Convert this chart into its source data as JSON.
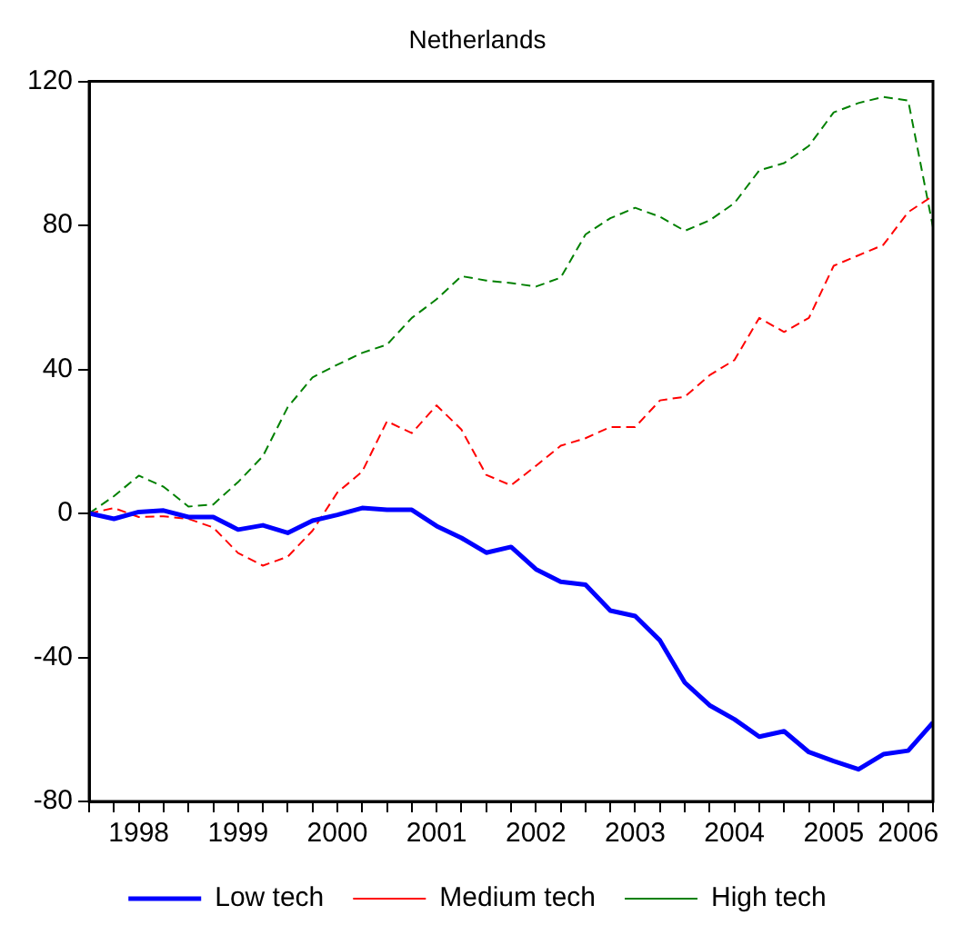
{
  "chart_data": {
    "type": "line",
    "title": "Netherlands",
    "x": [
      1998,
      1998.25,
      1998.5,
      1998.75,
      1999,
      1999.25,
      1999.5,
      1999.75,
      2000,
      2000.25,
      2000.5,
      2000.75,
      2001,
      2001.25,
      2001.5,
      2001.75,
      2002,
      2002.25,
      2002.5,
      2002.75,
      2003,
      2003.25,
      2003.5,
      2003.75,
      2004,
      2004.25,
      2004.5,
      2004.75,
      2005,
      2005.25,
      2005.5,
      2005.75,
      2006,
      2006.25,
      2006.5
    ],
    "xlim": [
      1998,
      2006.5
    ],
    "xticks": [
      {
        "value": 1998,
        "label": null
      },
      {
        "value": 1998.25,
        "label": null
      },
      {
        "value": 1998.5,
        "label": "1998"
      },
      {
        "value": 1998.75,
        "label": null
      },
      {
        "value": 1999,
        "label": null
      },
      {
        "value": 1999.25,
        "label": null
      },
      {
        "value": 1999.5,
        "label": "1999"
      },
      {
        "value": 1999.75,
        "label": null
      },
      {
        "value": 2000,
        "label": null
      },
      {
        "value": 2000.25,
        "label": null
      },
      {
        "value": 2000.5,
        "label": "2000"
      },
      {
        "value": 2000.75,
        "label": null
      },
      {
        "value": 2001,
        "label": null
      },
      {
        "value": 2001.25,
        "label": null
      },
      {
        "value": 2001.5,
        "label": "2001"
      },
      {
        "value": 2001.75,
        "label": null
      },
      {
        "value": 2002,
        "label": null
      },
      {
        "value": 2002.25,
        "label": null
      },
      {
        "value": 2002.5,
        "label": "2002"
      },
      {
        "value": 2002.75,
        "label": null
      },
      {
        "value": 2003,
        "label": null
      },
      {
        "value": 2003.25,
        "label": null
      },
      {
        "value": 2003.5,
        "label": "2003"
      },
      {
        "value": 2003.75,
        "label": null
      },
      {
        "value": 2004,
        "label": null
      },
      {
        "value": 2004.25,
        "label": null
      },
      {
        "value": 2004.5,
        "label": "2004"
      },
      {
        "value": 2004.75,
        "label": null
      },
      {
        "value": 2005,
        "label": null
      },
      {
        "value": 2005.25,
        "label": null
      },
      {
        "value": 2005.5,
        "label": "2005"
      },
      {
        "value": 2005.75,
        "label": null
      },
      {
        "value": 2006,
        "label": null
      },
      {
        "value": 2006.25,
        "label": "2006"
      },
      {
        "value": 2006.5,
        "label": null
      }
    ],
    "ylim": [
      -80,
      120
    ],
    "yticks": [
      -80,
      -40,
      0,
      40,
      80,
      120
    ],
    "grid": false,
    "legend": "bottom",
    "marker": "none",
    "series": [
      {
        "name": "Low tech",
        "color": "#0000ff",
        "line_style": "solid",
        "values": [
          0,
          -1.5,
          0.4,
          0.8,
          -1,
          -1,
          -4.5,
          -3.3,
          -5.4,
          -2,
          -0.4,
          1.5,
          1,
          1,
          -3.5,
          -6.8,
          -10.9,
          -9.3,
          -15.5,
          -19,
          -19.8,
          -27,
          -28.5,
          -35.3,
          -47,
          -53.3,
          -57.2,
          -62,
          -60.5,
          -66.3,
          -68.8,
          -71.1,
          -66.9,
          -65.9,
          -58.1
        ]
      },
      {
        "name": "Medium tech",
        "color": "#ff0000",
        "line_style": "dashed",
        "values": [
          0,
          1.5,
          -1,
          -0.8,
          -1.5,
          -3.9,
          -11,
          -14.5,
          -12,
          -4.8,
          5.8,
          11.6,
          25.6,
          22.3,
          30,
          23.3,
          10.7,
          7.8,
          13.2,
          18.8,
          20.9,
          24,
          24,
          31.4,
          32.4,
          38.4,
          42.6,
          54.3,
          50.4,
          54.3,
          68.8,
          71.7,
          74.6,
          83.7,
          88.2
        ]
      },
      {
        "name": "High tech",
        "color": "#008000",
        "line_style": "dashed",
        "values": [
          0,
          4.8,
          10.5,
          7.4,
          1.9,
          2.5,
          8.7,
          15.9,
          29.5,
          37.8,
          41.3,
          44.6,
          46.9,
          54.3,
          59.5,
          65.9,
          64.7,
          64,
          63,
          65.5,
          77.5,
          82,
          84.9,
          82.4,
          78.5,
          81.4,
          86.2,
          95.3,
          97.3,
          102.1,
          111.4,
          114,
          115.7,
          114.7,
          79.5
        ]
      }
    ]
  }
}
